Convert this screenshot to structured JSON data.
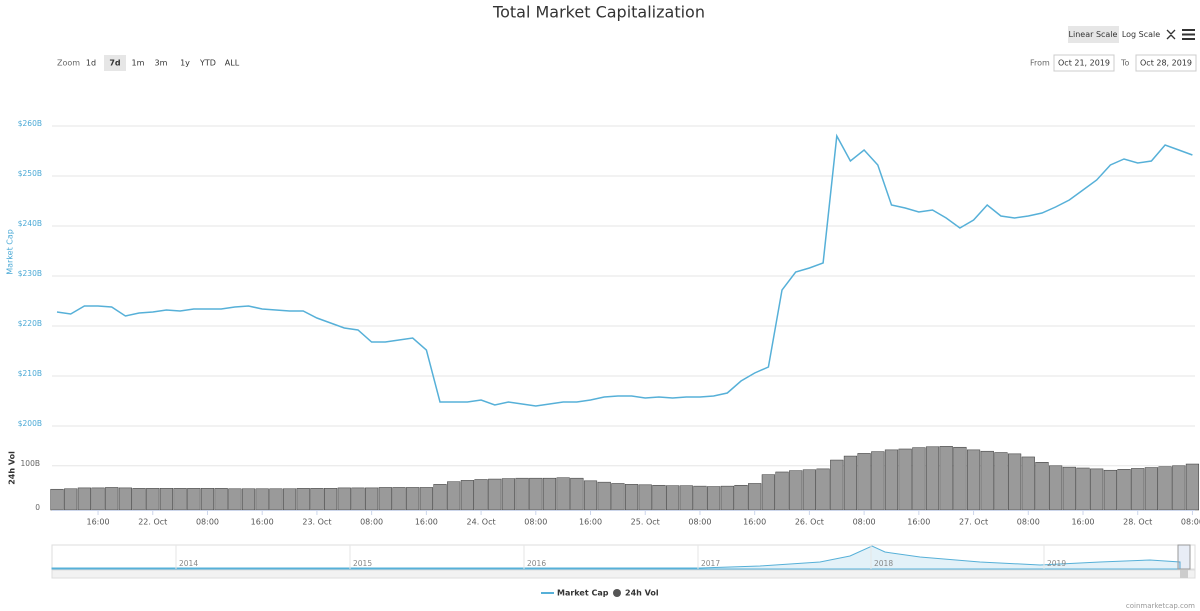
{
  "chart_data": {
    "type": "line",
    "title": "Total Market Capitalization",
    "y_label": "Market Cap",
    "y2_label": "24h Vol",
    "categories": [
      null,
      null,
      null,
      "16:00",
      null,
      null,
      null,
      "22. Oct",
      null,
      null,
      null,
      "08:00",
      null,
      null,
      null,
      "16:00",
      null,
      null,
      null,
      "23. Oct",
      null,
      null,
      null,
      "08:00",
      null,
      null,
      null,
      "16:00",
      null,
      null,
      null,
      "24. Oct",
      null,
      null,
      null,
      "08:00",
      null,
      null,
      null,
      "16:00",
      null,
      null,
      null,
      "25. Oct",
      null,
      null,
      null,
      "08:00",
      null,
      null,
      null,
      "16:00",
      null,
      null,
      null,
      "26. Oct",
      null,
      null,
      null,
      "08:00",
      null,
      null,
      null,
      "16:00",
      null,
      null,
      null,
      "27. Oct",
      null,
      null,
      null,
      "08:00",
      null,
      null,
      null,
      "16:00",
      null,
      null,
      null,
      "28. Oct",
      null,
      null,
      null,
      "08:00"
    ],
    "series": [
      {
        "name": "Market Cap",
        "color": "#56b0d8",
        "values": [
          222.8,
          222.4,
          224,
          224,
          223.8,
          222,
          222.6,
          222.8,
          223.2,
          223,
          223.4,
          223.4,
          223.4,
          223.8,
          224,
          223.4,
          223.2,
          223,
          223,
          221.6,
          220.6,
          219.6,
          219.2,
          216.8,
          216.8,
          217.2,
          217.6,
          215.2,
          204.8,
          204.8,
          204.8,
          205.2,
          204.2,
          204.8,
          204.4,
          204,
          204.4,
          204.8,
          204.8,
          205.2,
          205.8,
          206,
          206,
          205.6,
          205.8,
          205.6,
          205.8,
          205.8,
          206,
          206.6,
          209,
          210.6,
          211.8,
          227.2,
          230.8,
          231.6,
          232.6,
          258,
          253,
          255.2,
          252.2,
          244.2,
          243.6,
          242.8,
          243.2,
          241.6,
          239.6,
          241.2,
          244.2,
          242,
          241.6,
          242,
          242.6,
          243.8,
          245.2,
          247.2,
          249.2,
          252.2,
          253.4,
          252.6,
          253,
          256.2,
          255.2,
          254.2
        ]
      },
      {
        "name": "24h Vol",
        "color": "#555555",
        "type": "bar",
        "axis": "y2",
        "values": [
          47,
          48,
          50,
          50,
          51,
          50,
          49,
          49,
          49,
          49,
          49,
          49,
          49,
          48,
          48,
          48,
          48,
          48,
          49,
          49,
          49,
          50,
          50,
          50,
          51,
          51,
          51,
          51,
          58,
          64,
          67,
          69,
          70,
          71,
          72,
          72,
          72,
          73,
          72,
          66,
          63,
          60,
          58,
          57,
          56,
          55,
          55,
          54,
          53,
          54,
          56,
          60,
          80,
          86,
          89,
          91,
          93,
          113,
          122,
          128,
          132,
          136,
          138,
          141,
          143,
          144,
          142,
          136,
          133,
          130,
          127,
          120,
          108,
          100,
          97,
          95,
          93,
          90,
          92,
          94,
          96,
          98,
          100,
          104
        ]
      }
    ],
    "ylim": [
      200,
      265
    ],
    "yticks": [
      {
        "value": 200,
        "label": "$200B"
      },
      {
        "value": 210,
        "label": "$210B"
      },
      {
        "value": 220,
        "label": "$220B"
      },
      {
        "value": 230,
        "label": "$230B"
      },
      {
        "value": 240,
        "label": "$240B"
      },
      {
        "value": 250,
        "label": "$250B"
      },
      {
        "value": 260,
        "label": "$260B"
      }
    ],
    "y2lim": [
      0,
      190
    ],
    "y2ticks": [
      0,
      {
        "value": 100,
        "label": "100B"
      }
    ],
    "grid": true,
    "legend": "bottom"
  },
  "ui": {
    "scale_buttons": [
      "Linear Scale",
      "Log Scale"
    ],
    "zoom_label": "Zoom",
    "zoom_buttons": [
      "1d",
      "7d",
      "1m",
      "3m",
      "1y",
      "YTD",
      "ALL"
    ],
    "from_label": "From",
    "from_date": "Oct 21, 2019",
    "to_label": "To",
    "to_date": "Oct 28, 2019",
    "navigator_years": [
      "2014",
      "2015",
      "2016",
      "2017",
      "2018",
      "2019"
    ],
    "credit": "coinmarketcap.com"
  }
}
